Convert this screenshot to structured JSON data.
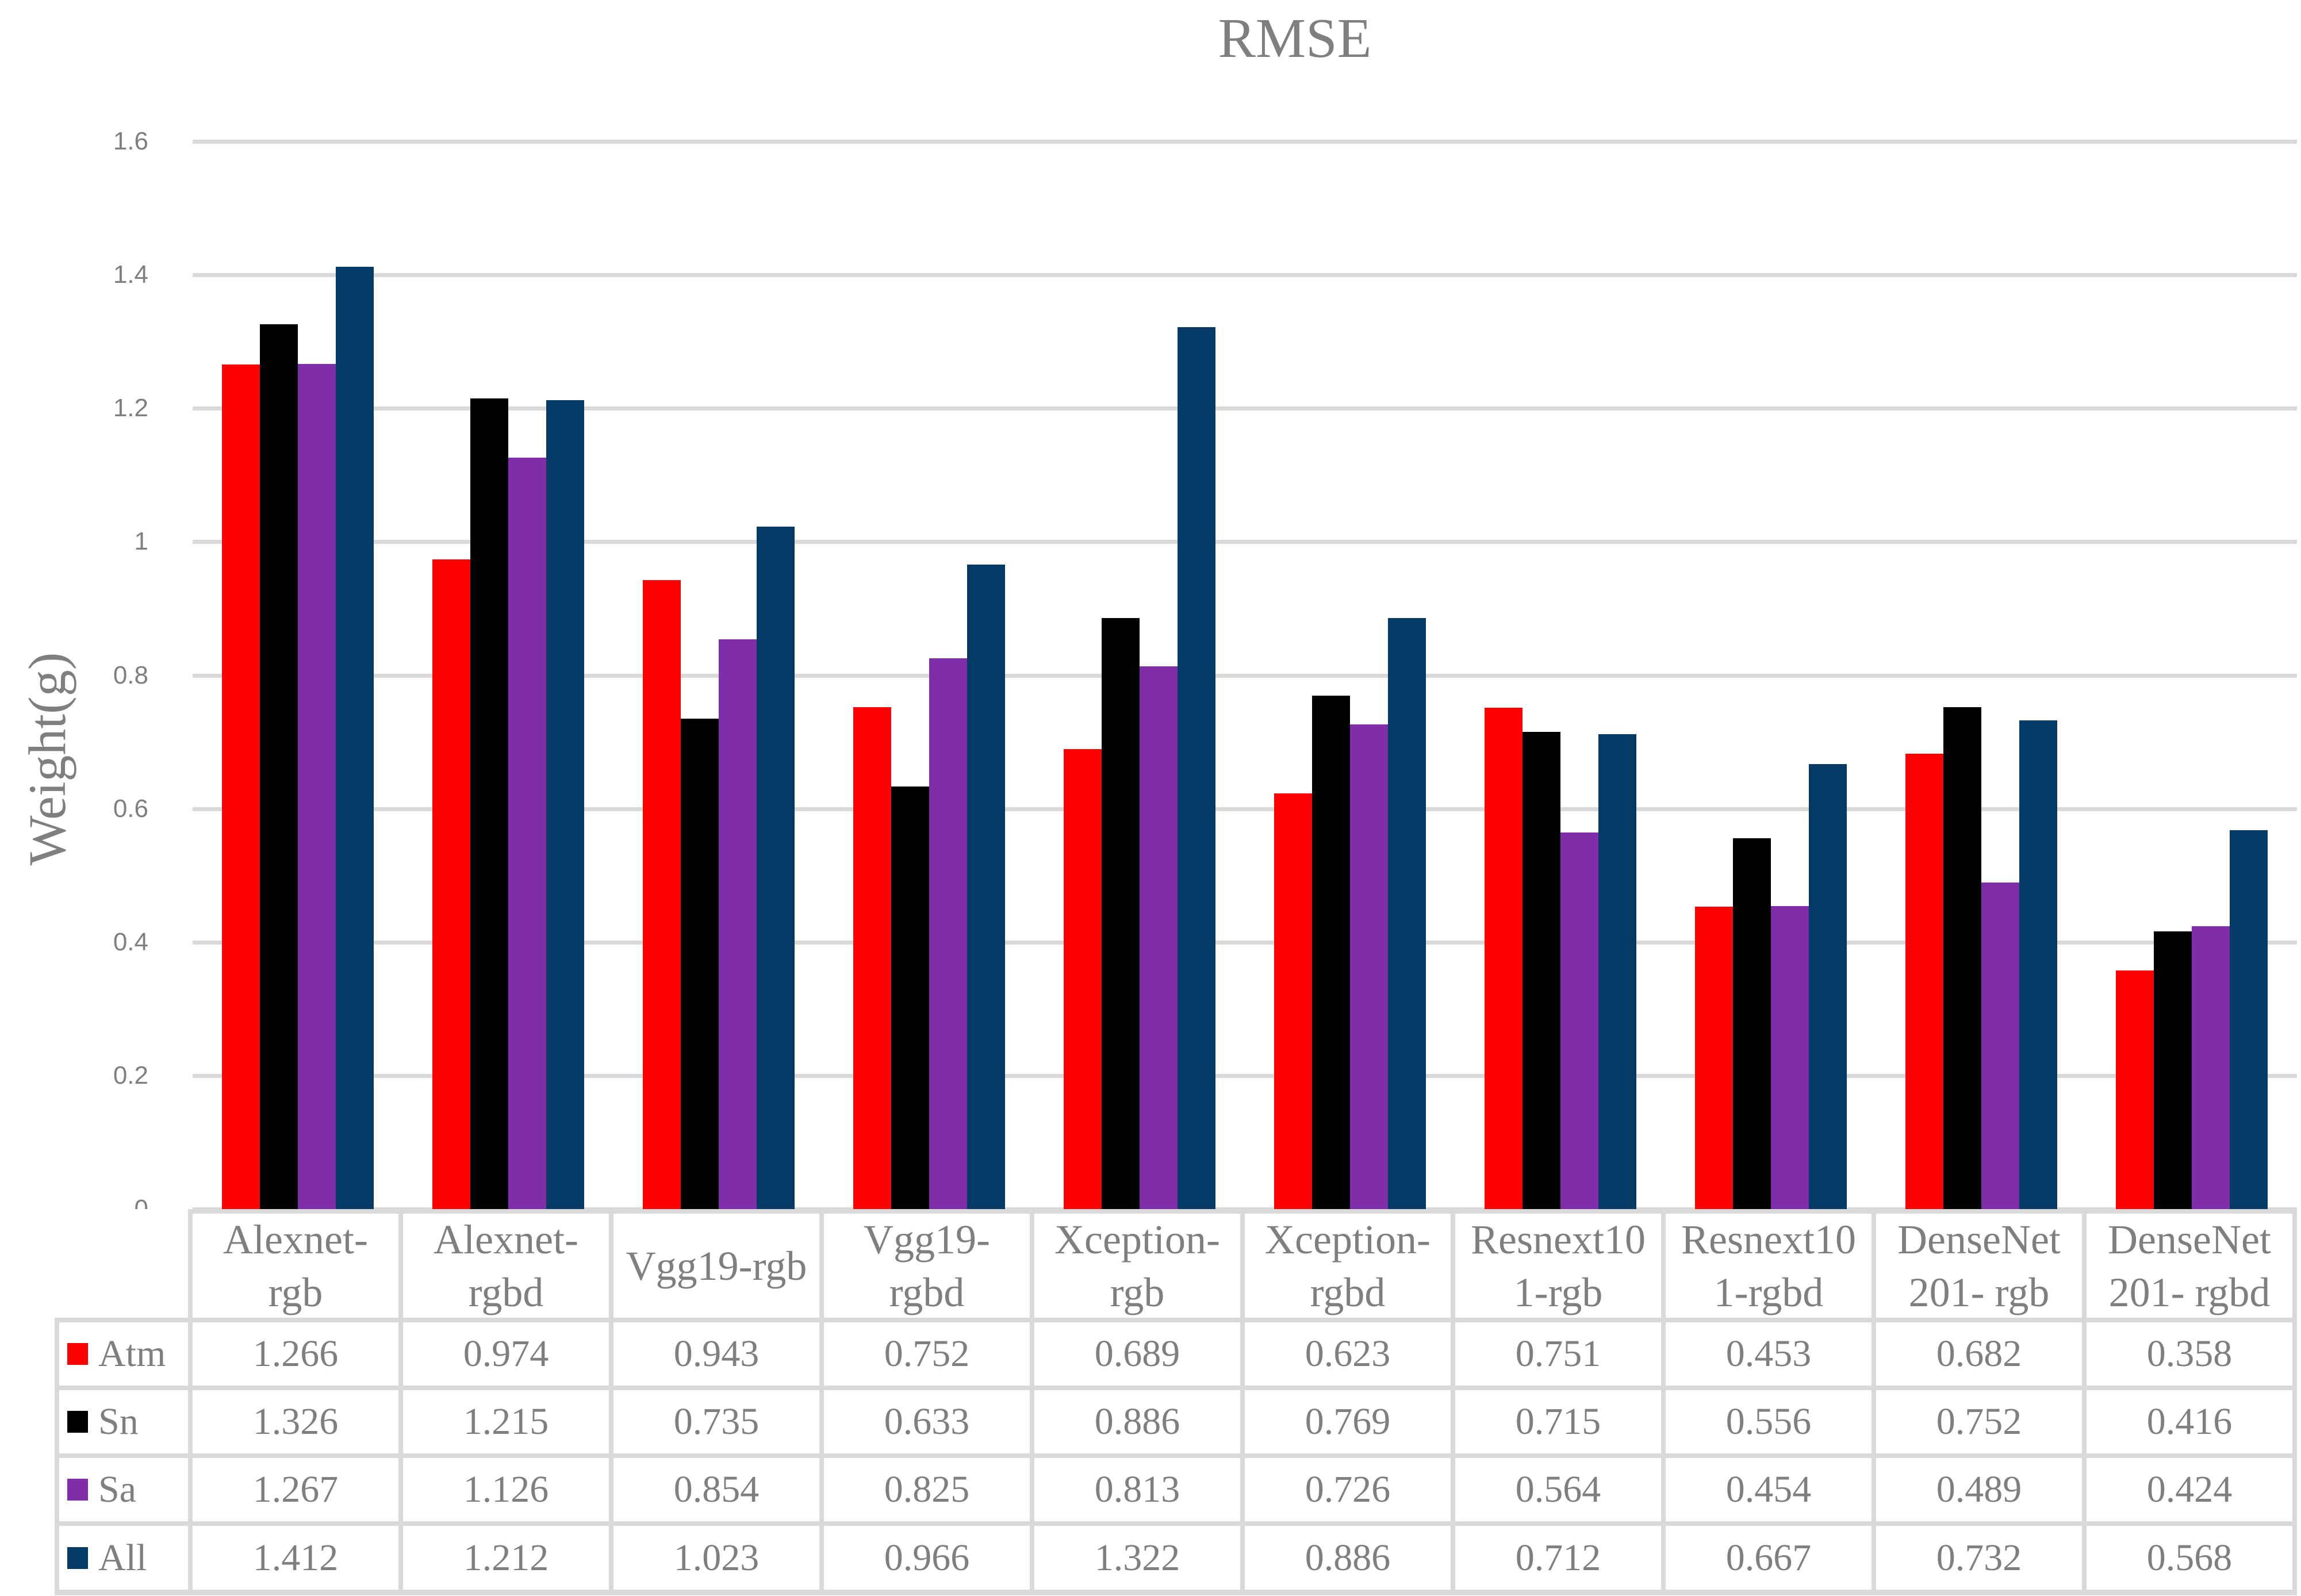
{
  "chart_data": {
    "type": "bar",
    "title": "RMSE",
    "ylabel": "Weight(g)",
    "ylim": [
      0,
      1.6
    ],
    "ytick_labels": [
      "1.6",
      "1.4",
      "1.2",
      "1",
      "0.8",
      "0.6",
      "0.4",
      "0.2",
      "0"
    ],
    "grid": "horizontal",
    "legend_position": "table-left",
    "categories": [
      "Alexnet-rgb",
      "Alexnet-rgbd",
      "Vgg19-rgb",
      "Vgg19-rgbd",
      "Xception-rgb",
      "Xception-rgbd",
      "Resnext101-rgb",
      "Resnext101-rgbd",
      "DenseNet201- rgb",
      "DenseNet201- rgbd"
    ],
    "category_label_lines": [
      [
        "Alexnet-",
        "rgb"
      ],
      [
        "Alexnet-",
        "rgbd"
      ],
      [
        "Vgg19-rgb"
      ],
      [
        "Vgg19-",
        "rgbd"
      ],
      [
        "Xception-",
        "rgb"
      ],
      [
        "Xception-",
        "rgbd"
      ],
      [
        "Resnext10",
        "1-rgb"
      ],
      [
        "Resnext10",
        "1-rgbd"
      ],
      [
        "DenseNet",
        "201- rgb"
      ],
      [
        "DenseNet",
        "201- rgbd"
      ]
    ],
    "series": [
      {
        "name": "Atm",
        "color": "#FF0000",
        "values": [
          1.266,
          0.974,
          0.943,
          0.752,
          0.689,
          0.623,
          0.751,
          0.453,
          0.682,
          0.358
        ]
      },
      {
        "name": "Sn",
        "color": "#000000",
        "values": [
          1.326,
          1.215,
          0.735,
          0.633,
          0.886,
          0.769,
          0.715,
          0.556,
          0.752,
          0.416
        ]
      },
      {
        "name": "Sa",
        "color": "#7F2DA8",
        "values": [
          1.267,
          1.126,
          0.854,
          0.825,
          0.813,
          0.726,
          0.564,
          0.454,
          0.489,
          0.424
        ]
      },
      {
        "name": "All",
        "color": "#033A66",
        "values": [
          1.412,
          1.212,
          1.023,
          0.966,
          1.322,
          0.886,
          0.712,
          0.667,
          0.732,
          0.568
        ]
      }
    ],
    "colors": {
      "text": "#7F7F7F",
      "gridline": "#D9D9D9",
      "table_border": "#D9D9D9",
      "background": "#FFFFFF"
    }
  }
}
